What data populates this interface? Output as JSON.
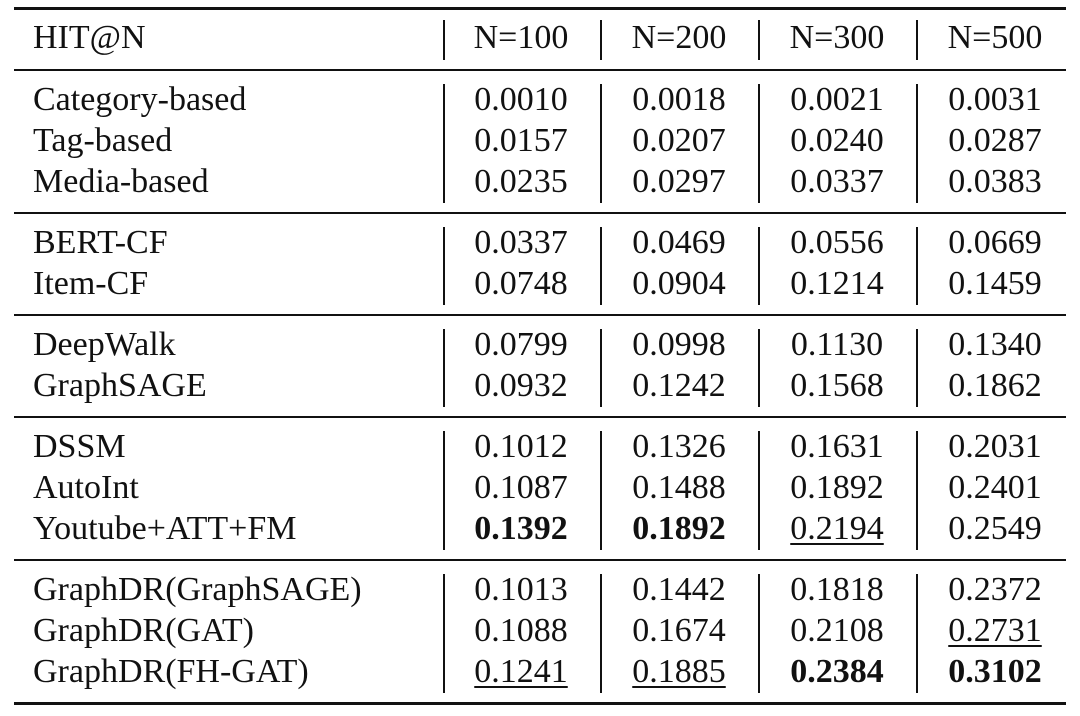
{
  "table": {
    "header": [
      "HIT@N",
      "N=100",
      "N=200",
      "N=300",
      "N=500"
    ],
    "groups": [
      [
        [
          "Category-based",
          "0.0010",
          "0.0018",
          "0.0021",
          "0.0031"
        ],
        [
          "Tag-based",
          "0.0157",
          "0.0207",
          "0.0240",
          "0.0287"
        ],
        [
          "Media-based",
          "0.0235",
          "0.0297",
          "0.0337",
          "0.0383"
        ]
      ],
      [
        [
          "BERT-CF",
          "0.0337",
          "0.0469",
          "0.0556",
          "0.0669"
        ],
        [
          "Item-CF",
          "0.0748",
          "0.0904",
          "0.1214",
          "0.1459"
        ]
      ],
      [
        [
          "DeepWalk",
          "0.0799",
          "0.0998",
          "0.1130",
          "0.1340"
        ],
        [
          "GraphSAGE",
          "0.0932",
          "0.1242",
          "0.1568",
          "0.1862"
        ]
      ],
      [
        [
          "DSSM",
          "0.1012",
          "0.1326",
          "0.1631",
          "0.2031"
        ],
        [
          "AutoInt",
          "0.1087",
          "0.1488",
          "0.1892",
          "0.2401"
        ],
        [
          "Youtube+ATT+FM",
          {
            "text": "0.1392",
            "style": "bold"
          },
          {
            "text": "0.1892",
            "style": "bold"
          },
          {
            "text": "0.2194",
            "style": "underline"
          },
          "0.2549"
        ]
      ],
      [
        [
          "GraphDR(GraphSAGE)",
          "0.1013",
          "0.1442",
          "0.1818",
          "0.2372"
        ],
        [
          "GraphDR(GAT)",
          "0.1088",
          "0.1674",
          "0.2108",
          {
            "text": "0.2731",
            "style": "underline"
          }
        ],
        [
          "GraphDR(FH-GAT)",
          {
            "text": "0.1241",
            "style": "underline"
          },
          {
            "text": "0.1885",
            "style": "underline"
          },
          {
            "text": "0.2384",
            "style": "bold"
          },
          {
            "text": "0.3102",
            "style": "bold"
          }
        ]
      ]
    ]
  }
}
